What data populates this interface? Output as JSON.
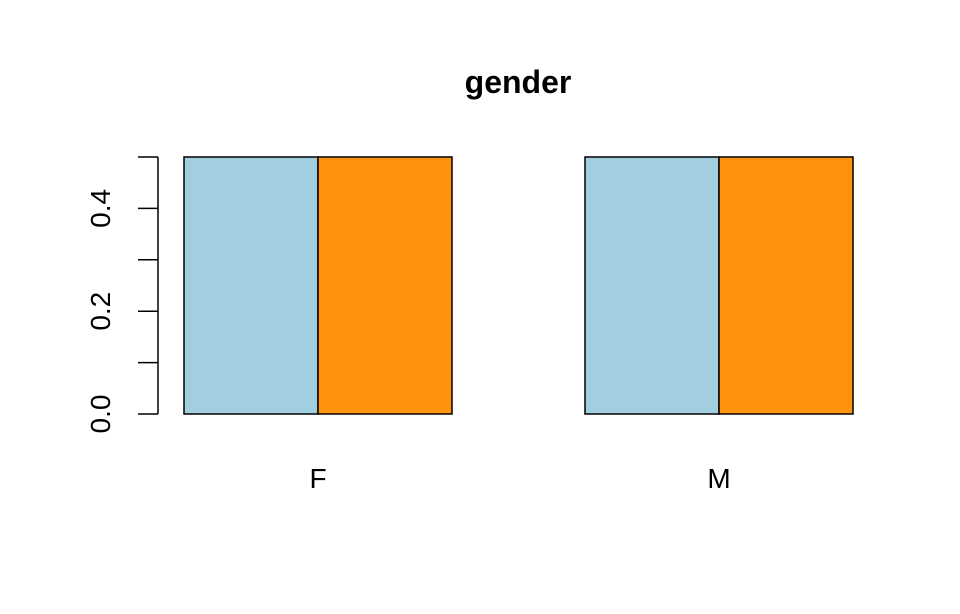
{
  "chart_data": {
    "type": "bar",
    "title": "gender",
    "xlabel": "",
    "ylabel": "",
    "categories": [
      "F",
      "M"
    ],
    "series": [
      {
        "values": [
          0.5,
          0.5
        ],
        "color": "#a1cfe0"
      },
      {
        "values": [
          0.5,
          0.5
        ],
        "color": "#ff930b"
      }
    ],
    "ylim": [
      0,
      0.5
    ],
    "yticks": [
      0.0,
      0.1,
      0.2,
      0.3,
      0.4,
      0.5
    ],
    "ytick_labels": [
      "0.0",
      "",
      "0.2",
      "",
      "0.4",
      ""
    ],
    "grid": false,
    "legend": "none"
  }
}
